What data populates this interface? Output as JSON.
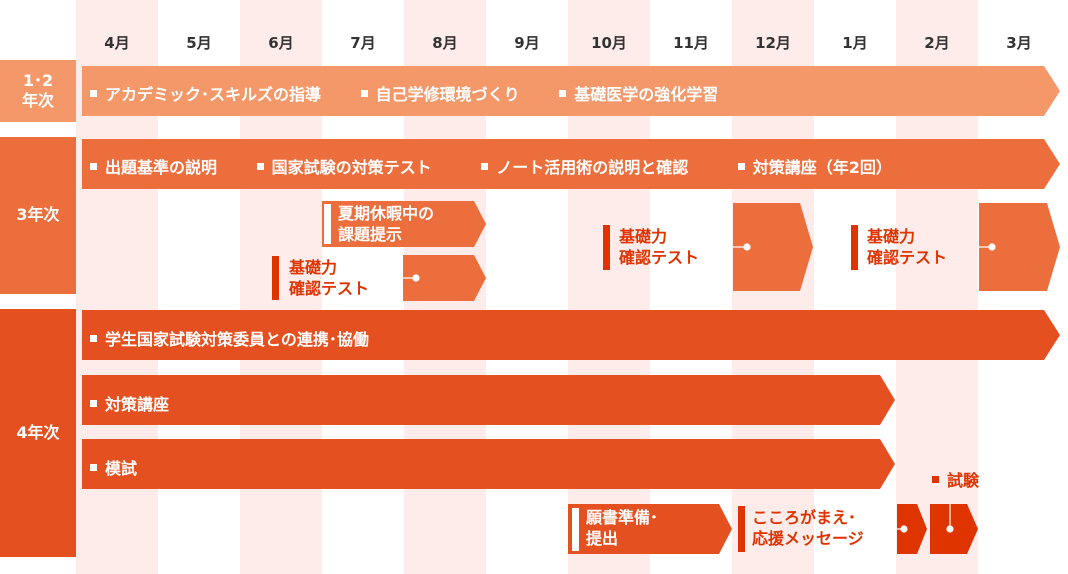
{
  "months": [
    "4月",
    "5月",
    "6月",
    "7月",
    "8月",
    "9月",
    "10月",
    "11月",
    "12月",
    "1月",
    "2月",
    "3月"
  ],
  "colors": {
    "year12": "#f4986a",
    "year3": "#ec6e3d",
    "year4": "#e4501f",
    "exam": "#df3300",
    "column_tint": "#fdecea"
  },
  "years": {
    "y12": "1･2\n年次",
    "y3": "3年次",
    "y4": "4年次"
  },
  "row12": {
    "items": [
      "アカデミック･スキルズの指導",
      "自己学修環境づくり",
      "基礎医学の強化学習"
    ]
  },
  "row3": {
    "items": [
      "出題基準の説明",
      "国家試験の対策テスト",
      "ノート活用術の説明と確認",
      "対策講座（年2回）"
    ],
    "summer": [
      "夏期休暇中の",
      "課題提示"
    ],
    "test_line1": "基礎力",
    "test_line2": "確認テスト"
  },
  "row4": {
    "bar1": "学生国家試験対策委員との連携･協働",
    "bar2": "対策講座",
    "bar3": "模試",
    "application": [
      "願書準備･",
      "提出"
    ],
    "mindset": [
      "こころがまえ･",
      "応援メッセージ"
    ],
    "exam": "試験"
  }
}
